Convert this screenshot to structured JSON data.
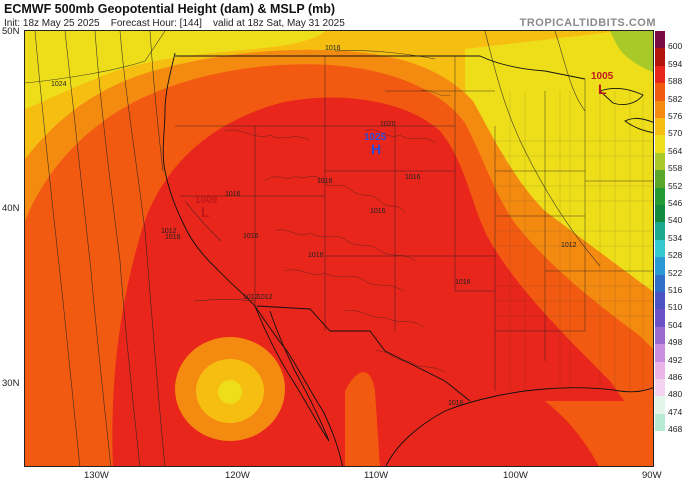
{
  "header": {
    "title": "ECMWF 500mb Geopotential Height (dam) & MSLP (mb)",
    "init": "Init: 18z May 25 2025",
    "forecast_hour": "Forecast Hour: [144]",
    "valid": "valid at 18z Sat, May 31 2025",
    "site": "TROPICALTIDBITS.COM"
  },
  "axes": {
    "lat_labels": [
      "50N",
      "40N",
      "30N"
    ],
    "lon_labels": [
      "130W",
      "120W",
      "110W",
      "100W",
      "90W"
    ]
  },
  "legend": {
    "levels": [
      "600",
      "594",
      "588",
      "582",
      "576",
      "570",
      "564",
      "558",
      "552",
      "546",
      "540",
      "534",
      "528",
      "522",
      "516",
      "510",
      "504",
      "498",
      "492",
      "486",
      "480",
      "474",
      "468"
    ],
    "colors": [
      "#7a0a43",
      "#b3150c",
      "#e8261b",
      "#f25a12",
      "#f58a10",
      "#f7be12",
      "#eede1a",
      "#a8c928",
      "#58a72a",
      "#249b32",
      "#148a3e",
      "#1ba88c",
      "#35c8d2",
      "#2b99d4",
      "#3170c8",
      "#4b52c2",
      "#6d52c6",
      "#9b6bd2",
      "#c98fe0",
      "#eab6ea",
      "#f4d3f0",
      "#e3f5e6",
      "#b8ecd2"
    ]
  },
  "map": {
    "pressure_centers": [
      {
        "type": "H",
        "value": "1025",
        "color": "#2d4bd6"
      },
      {
        "type": "L",
        "value": "1005",
        "color": "#c0181a"
      },
      {
        "type": "L",
        "value": "1009",
        "color": "#c0181a"
      }
    ],
    "isobar_labels": [
      "1024",
      "1016",
      "1020",
      "1016",
      "1016",
      "1016",
      "1016",
      "1012",
      "1012",
      "1016",
      "1016",
      "1012",
      "1016",
      "1012",
      "1016",
      "1016"
    ]
  }
}
